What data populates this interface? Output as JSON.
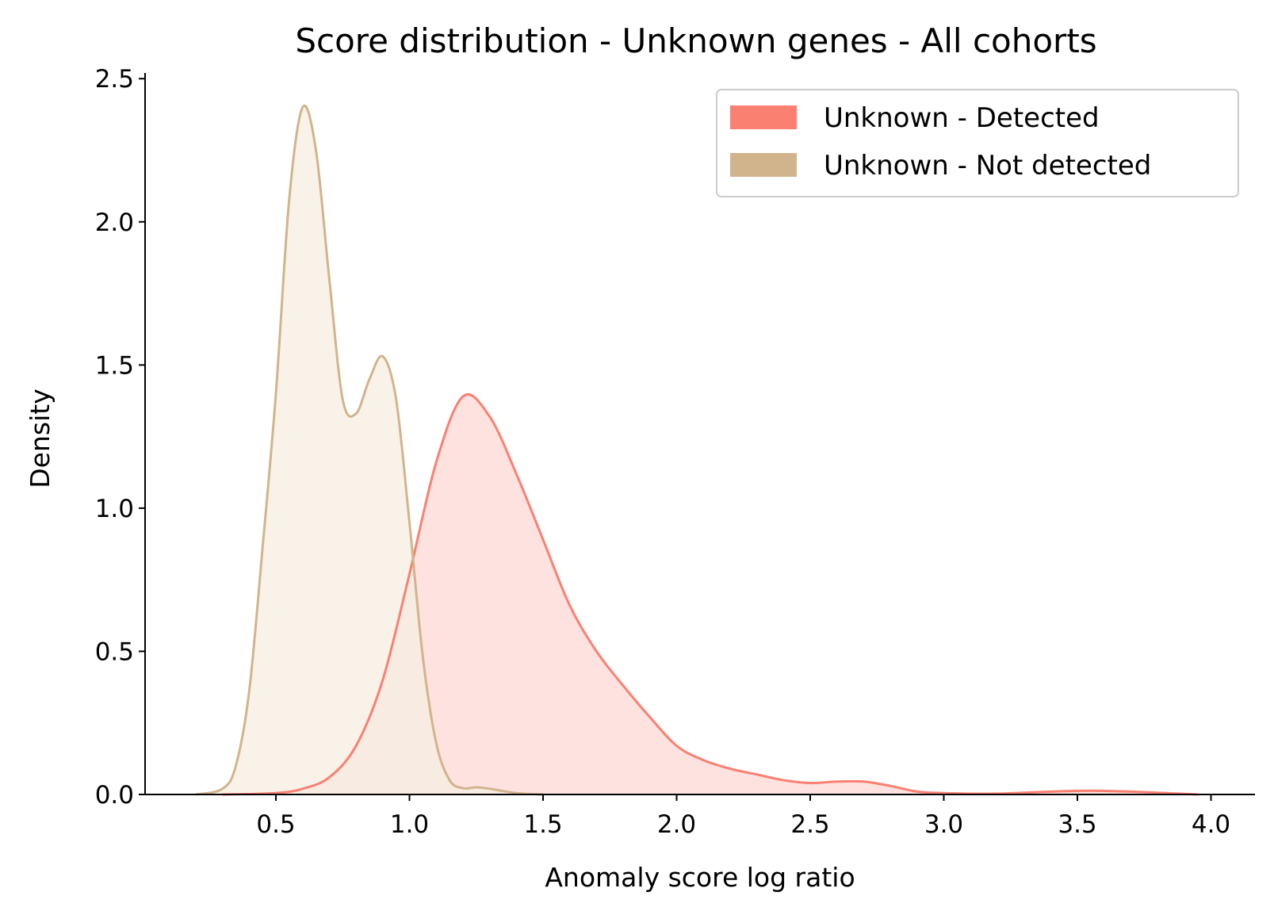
{
  "chart_data": {
    "type": "area",
    "title": "Score distribution - Unknown genes - All cohorts",
    "xlabel": "Anomaly score log ratio",
    "ylabel": "Density",
    "xlim": [
      0.0,
      4.17
    ],
    "ylim": [
      0,
      2.52
    ],
    "xticks": [
      0.5,
      1.0,
      1.5,
      2.0,
      2.5,
      3.0,
      3.5,
      4.0
    ],
    "xtick_labels": [
      "0.5",
      "1.0",
      "1.5",
      "2.0",
      "2.5",
      "3.0",
      "3.5",
      "4.0"
    ],
    "yticks": [
      0.0,
      0.5,
      1.0,
      1.5,
      2.0,
      2.5
    ],
    "ytick_labels": [
      "0.0",
      "0.5",
      "1.0",
      "1.5",
      "2.0",
      "2.5"
    ],
    "grid": false,
    "legend_position": "top-right",
    "series": [
      {
        "name": "Unknown - Detected",
        "line_color": "#fa8072",
        "fill_color": "#fde2df",
        "points": [
          [
            0.3,
            0.0
          ],
          [
            0.5,
            0.005
          ],
          [
            0.6,
            0.02
          ],
          [
            0.7,
            0.06
          ],
          [
            0.8,
            0.17
          ],
          [
            0.9,
            0.4
          ],
          [
            1.0,
            0.77
          ],
          [
            1.1,
            1.16
          ],
          [
            1.2,
            1.39
          ],
          [
            1.3,
            1.32
          ],
          [
            1.4,
            1.12
          ],
          [
            1.5,
            0.89
          ],
          [
            1.6,
            0.66
          ],
          [
            1.7,
            0.5
          ],
          [
            1.8,
            0.38
          ],
          [
            1.9,
            0.27
          ],
          [
            2.0,
            0.17
          ],
          [
            2.1,
            0.12
          ],
          [
            2.2,
            0.09
          ],
          [
            2.3,
            0.07
          ],
          [
            2.4,
            0.05
          ],
          [
            2.5,
            0.04
          ],
          [
            2.6,
            0.045
          ],
          [
            2.7,
            0.045
          ],
          [
            2.8,
            0.03
          ],
          [
            2.9,
            0.01
          ],
          [
            3.0,
            0.005
          ],
          [
            3.2,
            0.003
          ],
          [
            3.4,
            0.01
          ],
          [
            3.55,
            0.013
          ],
          [
            3.7,
            0.01
          ],
          [
            3.85,
            0.004
          ],
          [
            3.95,
            0.0
          ]
        ]
      },
      {
        "name": "Unknown - Not detected",
        "line_color": "#d2b48c",
        "fill_color": "#f5ede2",
        "points": [
          [
            0.2,
            0.0
          ],
          [
            0.3,
            0.02
          ],
          [
            0.35,
            0.1
          ],
          [
            0.4,
            0.36
          ],
          [
            0.45,
            0.86
          ],
          [
            0.5,
            1.4
          ],
          [
            0.55,
            2.08
          ],
          [
            0.6,
            2.4
          ],
          [
            0.65,
            2.25
          ],
          [
            0.7,
            1.8
          ],
          [
            0.75,
            1.38
          ],
          [
            0.8,
            1.33
          ],
          [
            0.85,
            1.45
          ],
          [
            0.9,
            1.53
          ],
          [
            0.95,
            1.38
          ],
          [
            1.0,
            0.95
          ],
          [
            1.05,
            0.48
          ],
          [
            1.1,
            0.18
          ],
          [
            1.15,
            0.05
          ],
          [
            1.2,
            0.022
          ],
          [
            1.25,
            0.025
          ],
          [
            1.3,
            0.02
          ],
          [
            1.4,
            0.005
          ],
          [
            1.5,
            0.0
          ]
        ]
      }
    ]
  }
}
